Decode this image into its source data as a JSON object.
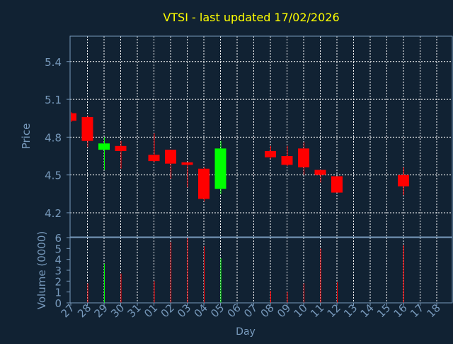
{
  "title": "VTSI - last updated 17/02/2026",
  "colors": {
    "background": "#112233",
    "title": "#ffff00",
    "axis_text": "#7799bb",
    "frame": "#7799bb",
    "grid": "#ffffff",
    "up": "#00ff00",
    "down": "#ff0000"
  },
  "chart_data": {
    "type": "candlestick",
    "title": "VTSI - last updated 17/02/2026",
    "xlabel": "Day",
    "ylabel": "Price",
    "volume_label": "Volume (0000)",
    "ylim": [
      4.0,
      5.5
    ],
    "yticks": [
      "5.4",
      "5.1",
      "4.8",
      "4.5",
      "4.2"
    ],
    "volume_ylim": [
      0,
      6
    ],
    "volume_yticks": [
      "6",
      "5",
      "4",
      "3",
      "2",
      "1",
      "0"
    ],
    "x_labels": [
      "27",
      "28",
      "29",
      "30",
      "31",
      "01",
      "02",
      "03",
      "04",
      "05",
      "06",
      "07",
      "08",
      "09",
      "10",
      "11",
      "12",
      "13",
      "14",
      "15",
      "16",
      "17",
      "18"
    ],
    "grid": true,
    "candles": [
      {
        "i": 0,
        "open": 4.99,
        "close": 4.93,
        "high": 5.0,
        "low": 4.92,
        "volume": 0.0
      },
      {
        "i": 1,
        "open": 4.96,
        "close": 4.77,
        "high": 4.97,
        "low": 4.72,
        "volume": 1.8
      },
      {
        "i": 2,
        "open": 4.7,
        "close": 4.75,
        "high": 4.8,
        "low": 4.54,
        "volume": 3.6
      },
      {
        "i": 3,
        "open": 4.73,
        "close": 4.69,
        "high": 4.77,
        "low": 4.55,
        "volume": 2.7
      },
      {
        "i": 5,
        "open": 4.66,
        "close": 4.61,
        "high": 4.83,
        "low": 4.6,
        "volume": 2.0
      },
      {
        "i": 6,
        "open": 4.7,
        "close": 4.59,
        "high": 4.7,
        "low": 4.47,
        "volume": 5.6
      },
      {
        "i": 7,
        "open": 4.6,
        "close": 4.58,
        "high": 4.6,
        "low": 4.4,
        "volume": 6.0
      },
      {
        "i": 8,
        "open": 4.55,
        "close": 4.31,
        "high": 4.56,
        "low": 4.29,
        "volume": 5.2
      },
      {
        "i": 9,
        "open": 4.39,
        "close": 4.71,
        "high": 4.77,
        "low": 4.35,
        "volume": 4.1
      },
      {
        "i": 12,
        "open": 4.69,
        "close": 4.64,
        "high": 4.73,
        "low": 4.63,
        "volume": 1.1
      },
      {
        "i": 13,
        "open": 4.65,
        "close": 4.58,
        "high": 4.73,
        "low": 4.57,
        "volume": 1.0
      },
      {
        "i": 14,
        "open": 4.71,
        "close": 4.56,
        "high": 4.76,
        "low": 4.5,
        "volume": 1.8
      },
      {
        "i": 15,
        "open": 4.54,
        "close": 4.5,
        "high": 4.54,
        "low": 4.44,
        "volume": 5.0
      },
      {
        "i": 16,
        "open": 4.49,
        "close": 4.36,
        "high": 4.49,
        "low": 4.36,
        "volume": 1.9
      },
      {
        "i": 20,
        "open": 4.5,
        "close": 4.41,
        "high": 4.56,
        "low": 4.34,
        "volume": 5.3
      }
    ]
  }
}
